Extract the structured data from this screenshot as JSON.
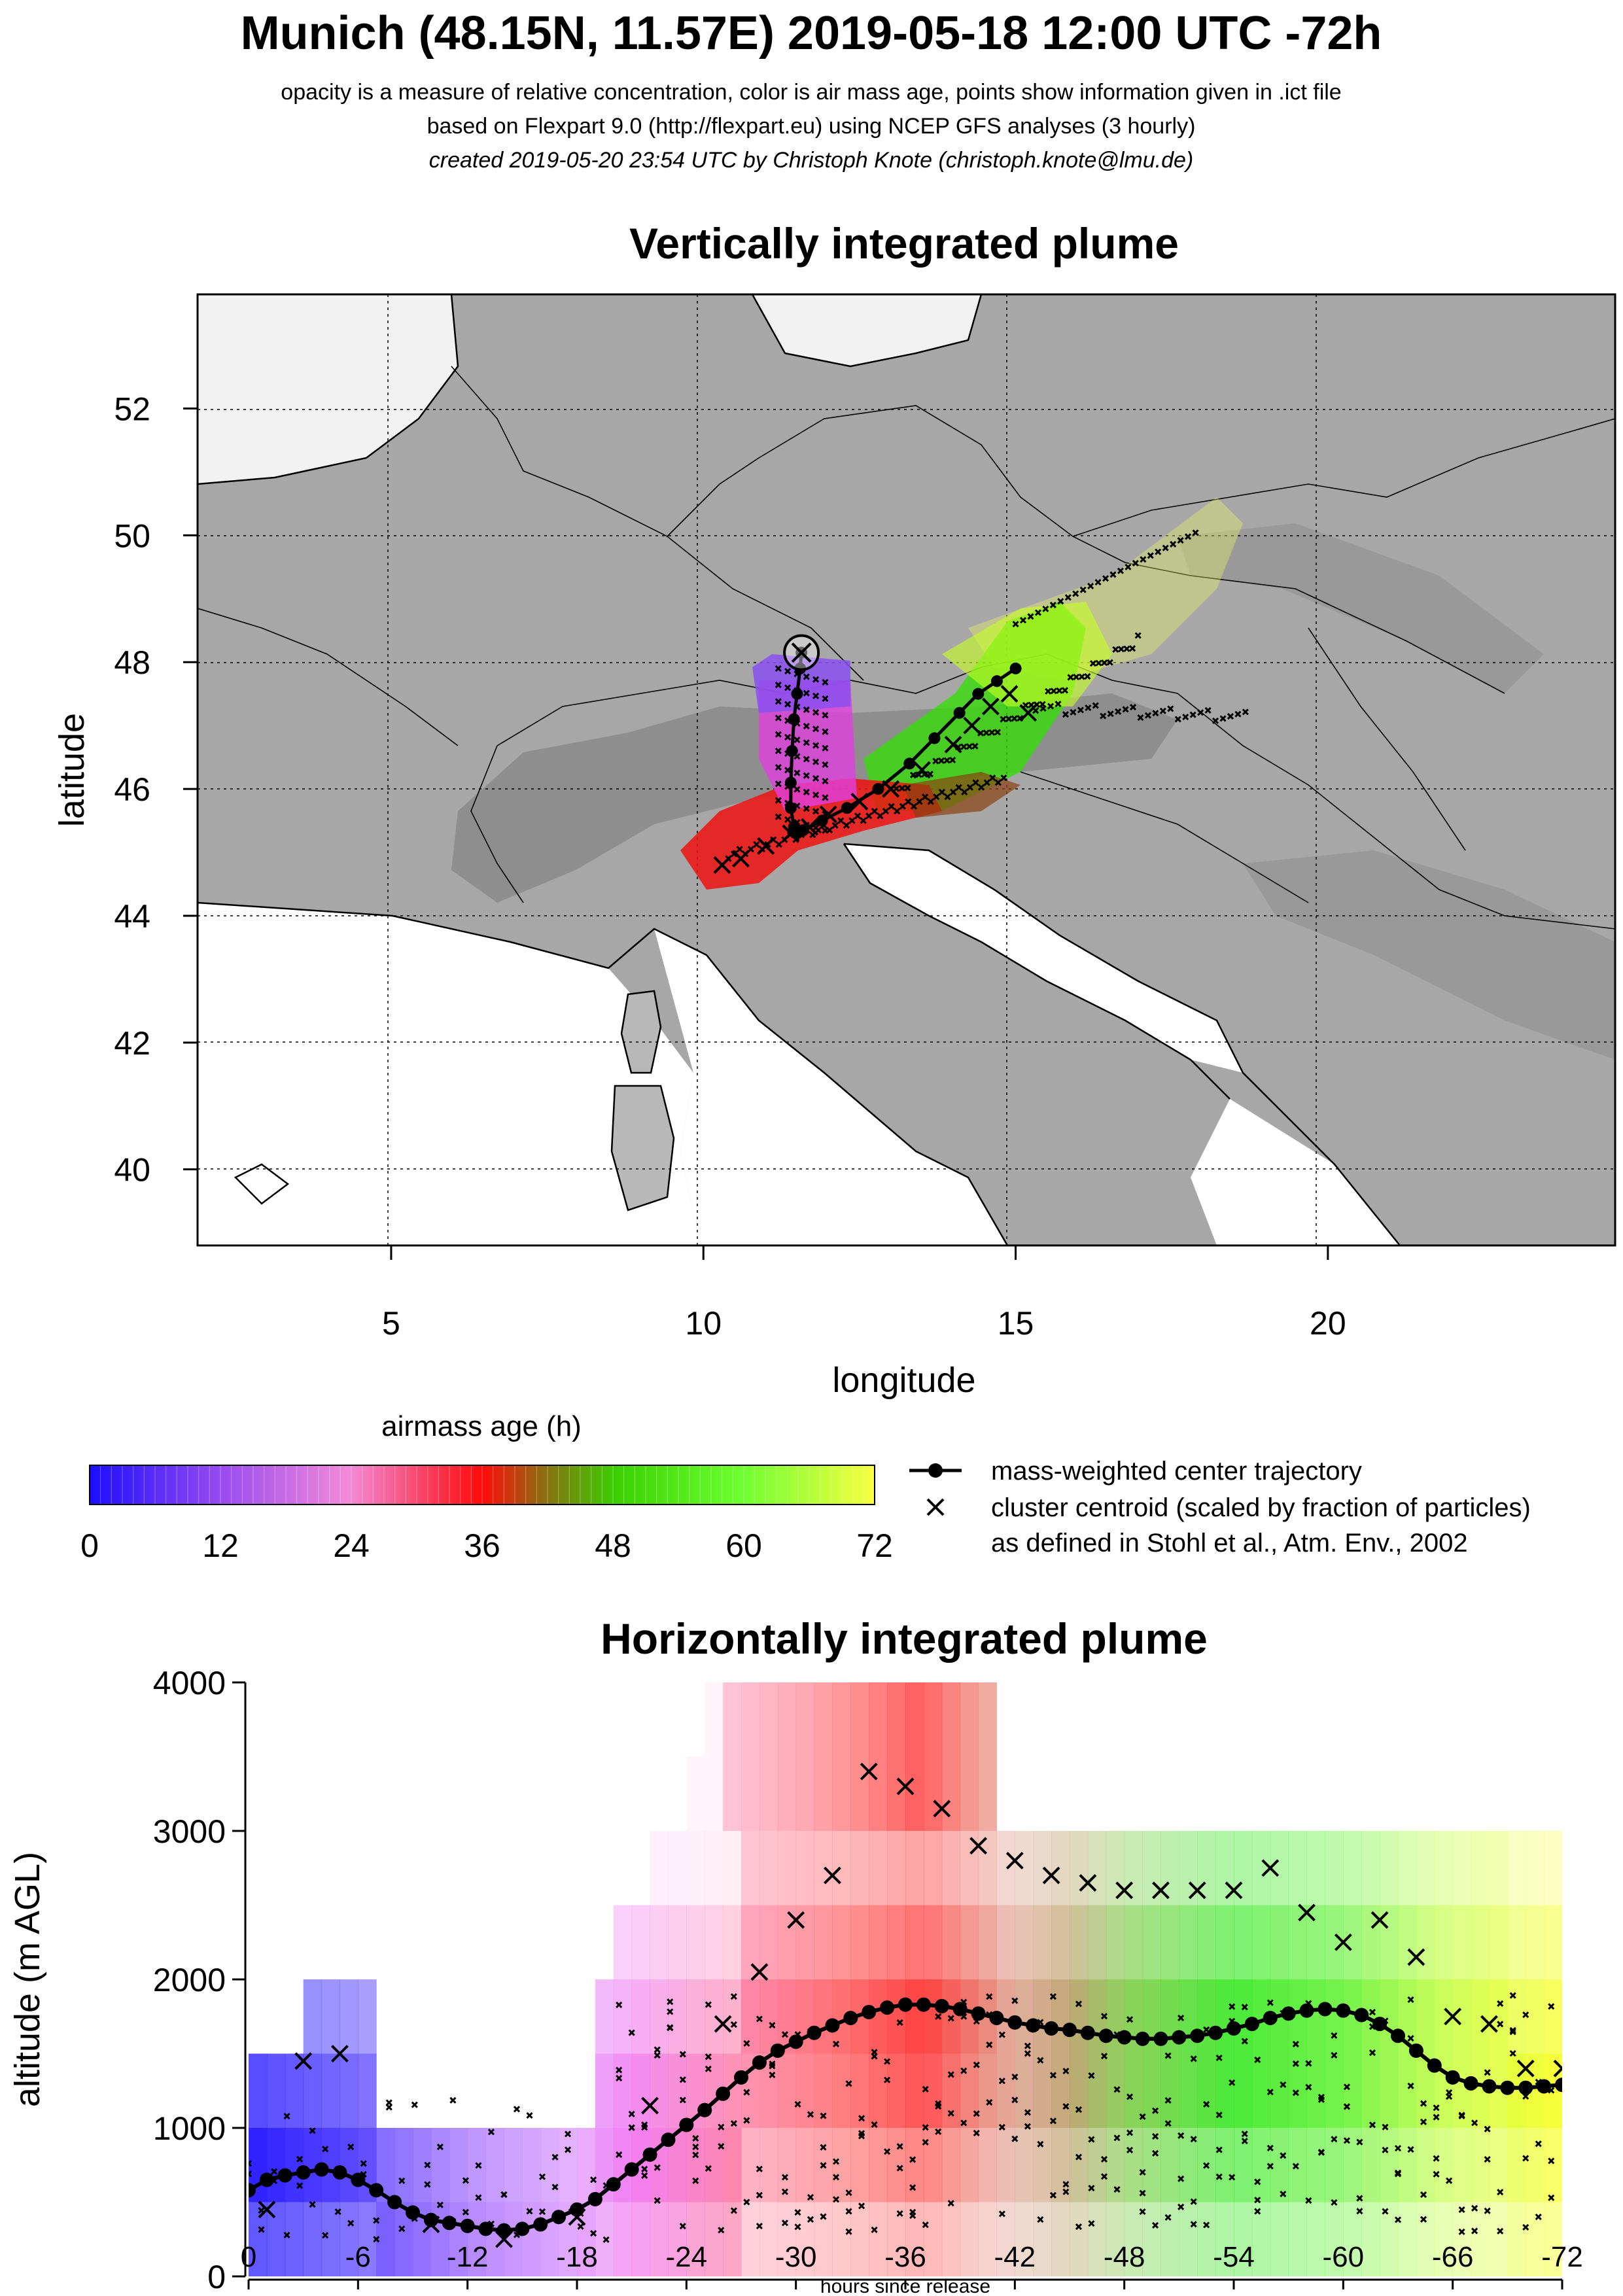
{
  "header": {
    "title": "Munich (48.15N, 11.57E) 2019-05-18 12:00 UTC -72h",
    "line1": "opacity is a measure of relative concentration, color is air mass age, points show information given in .ict file",
    "line2": "based on Flexpart 9.0 (http://flexpart.eu) using NCEP GFS analyses (3 hourly)",
    "line3": "created 2019-05-20 23:54 UTC by Christoph Knote (christoph.knote@lmu.de)"
  },
  "colors": {
    "young": "#2010ff",
    "mid": "#ff0000",
    "old_green": "#00ee00",
    "oldest": "#ffff00",
    "land": "#9a9a9a",
    "sea": "#ffffff"
  },
  "chart_data": [
    {
      "type": "map",
      "title": "Vertically integrated plume",
      "xlabel": "longitude",
      "ylabel": "latitude",
      "xlim": [
        1.9,
        24.6
      ],
      "ylim": [
        38.8,
        53.8
      ],
      "x_ticks": [
        "5",
        "10",
        "15",
        "20"
      ],
      "y_ticks": [
        "40",
        "42",
        "44",
        "46",
        "48",
        "50",
        "52"
      ],
      "x_tick_values": [
        5,
        10,
        15,
        20
      ],
      "y_tick_values": [
        40,
        42,
        44,
        46,
        48,
        50,
        52
      ],
      "grid": true,
      "release_point": {
        "lon": 11.57,
        "lat": 48.15
      },
      "center_trajectory": {
        "lon": [
          11.57,
          11.55,
          11.5,
          11.45,
          11.42,
          11.4,
          11.4,
          11.45,
          11.5,
          11.6,
          11.9,
          12.3,
          12.8,
          13.3,
          13.7,
          14.1,
          14.4,
          14.7,
          15.0
        ],
        "lat": [
          48.15,
          47.9,
          47.5,
          47.1,
          46.6,
          46.1,
          45.7,
          45.4,
          45.3,
          45.35,
          45.5,
          45.7,
          46.0,
          46.4,
          46.8,
          47.2,
          47.5,
          47.7,
          47.9
        ]
      },
      "cluster_centroids": {
        "lon": [
          10.3,
          10.6,
          11.0,
          11.4,
          11.7,
          12.0,
          12.5,
          13.0,
          13.5,
          14.0,
          14.3,
          14.6,
          14.9,
          15.2
        ],
        "lat": [
          44.8,
          44.9,
          45.1,
          45.3,
          45.4,
          45.6,
          45.8,
          46.0,
          46.3,
          46.7,
          47.0,
          47.3,
          47.5,
          47.2
        ]
      }
    },
    {
      "type": "legend",
      "colorbar_title": "airmass age (h)",
      "colorbar_ticks": [
        "0",
        "12",
        "24",
        "36",
        "48",
        "60",
        "72"
      ],
      "colorbar_range": [
        0,
        72
      ],
      "entries": [
        "mass-weighted center trajectory",
        "cluster centroid (scaled by fraction of particles)",
        "as defined in Stohl et al., Atm. Env., 2002"
      ]
    },
    {
      "type": "area",
      "title": "Horizontally integrated plume",
      "xlabel": "hours since release",
      "ylabel": "altitude (m AGL)",
      "xlim": [
        0,
        -72
      ],
      "ylim": [
        0,
        4000
      ],
      "x_ticks": [
        "0",
        "-6",
        "-12",
        "-18",
        "-24",
        "-30",
        "-36",
        "-42",
        "-48",
        "-54",
        "-60",
        "-66",
        "-72"
      ],
      "y_ticks": [
        "0",
        "1000",
        "2000",
        "3000",
        "4000"
      ],
      "series": [
        {
          "name": "mass-weighted center trajectory",
          "x": [
            0,
            -1,
            -2,
            -3,
            -4,
            -5,
            -6,
            -7,
            -8,
            -9,
            -10,
            -11,
            -12,
            -13,
            -14,
            -15,
            -16,
            -17,
            -18,
            -19,
            -20,
            -21,
            -22,
            -23,
            -24,
            -25,
            -26,
            -27,
            -28,
            -29,
            -30,
            -31,
            -32,
            -33,
            -34,
            -35,
            -36,
            -37,
            -38,
            -39,
            -40,
            -41,
            -42,
            -43,
            -44,
            -45,
            -46,
            -47,
            -48,
            -49,
            -50,
            -51,
            -52,
            -53,
            -54,
            -55,
            -56,
            -57,
            -58,
            -59,
            -60,
            -61,
            -62,
            -63,
            -64,
            -65,
            -66,
            -67,
            -68,
            -69,
            -70,
            -71,
            -72
          ],
          "values": [
            580,
            650,
            680,
            700,
            720,
            700,
            650,
            580,
            500,
            430,
            380,
            360,
            340,
            320,
            310,
            320,
            350,
            400,
            450,
            520,
            620,
            720,
            820,
            920,
            1020,
            1120,
            1230,
            1340,
            1440,
            1520,
            1580,
            1640,
            1690,
            1740,
            1780,
            1810,
            1830,
            1830,
            1820,
            1800,
            1770,
            1740,
            1710,
            1690,
            1670,
            1660,
            1640,
            1620,
            1610,
            1600,
            1600,
            1610,
            1620,
            1640,
            1670,
            1700,
            1740,
            1770,
            1790,
            1800,
            1790,
            1760,
            1700,
            1620,
            1520,
            1420,
            1340,
            1300,
            1280,
            1270,
            1270,
            1280,
            1290
          ]
        },
        {
          "name": "cluster centroid (scaled by fraction of particles)",
          "x": [
            -1,
            -3,
            -5,
            -10,
            -14,
            -18,
            -22,
            -26,
            -28,
            -30,
            -32,
            -34,
            -36,
            -38,
            -40,
            -42,
            -44,
            -46,
            -48,
            -50,
            -52,
            -54,
            -56,
            -58,
            -60,
            -62,
            -64,
            -66,
            -68,
            -70,
            -72
          ],
          "values": [
            450,
            1450,
            1500,
            350,
            250,
            400,
            1150,
            1700,
            2050,
            2400,
            2700,
            3400,
            3300,
            3150,
            2900,
            2800,
            2700,
            2650,
            2600,
            2600,
            2600,
            2600,
            2750,
            2450,
            2250,
            2400,
            2150,
            1750,
            1700,
            1400,
            1400
          ]
        }
      ]
    }
  ]
}
